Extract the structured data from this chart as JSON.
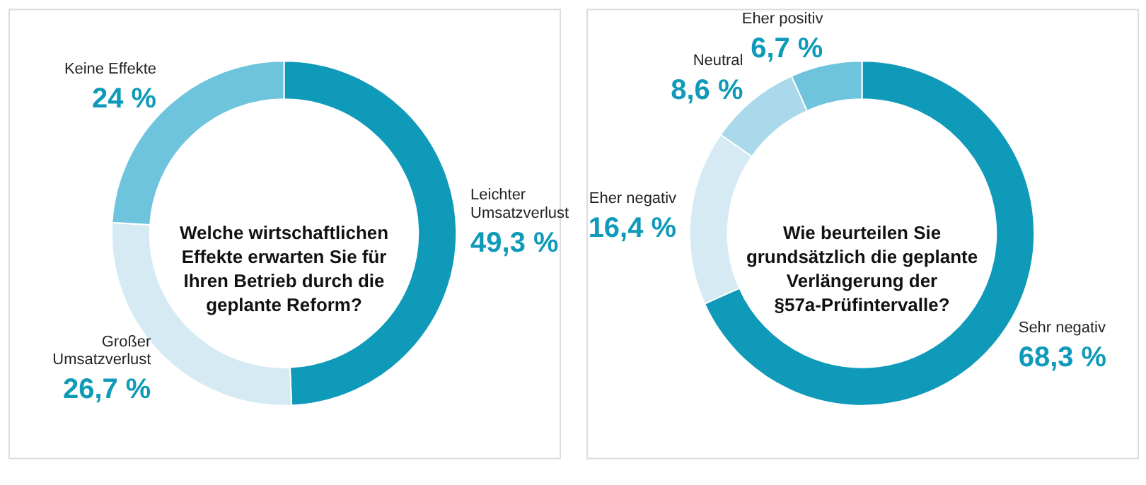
{
  "chart_data": [
    {
      "type": "donut",
      "title": "Welche wirtschaftlichen\nEffekte erwarten Sie für\nIhren Betrieb durch die\ngeplante Reform?",
      "categories": [
        "Leichter Umsatzverlust",
        "Großer Umsatzverlust",
        "Keine Effekte"
      ],
      "values": [
        49.3,
        26.7,
        24
      ],
      "colors": [
        "#0f9ab9",
        "#d5eaf3",
        "#6fc4dd"
      ],
      "value_labels": [
        "49,3 %",
        "26,7 %",
        "24 %"
      ]
    },
    {
      "type": "donut",
      "title": "Wie beurteilen Sie\ngrundsätzlich die geplante\nVerlängerung der\n§57a-Prüfintervalle?",
      "categories": [
        "Sehr negativ",
        "Eher negativ",
        "Neutral",
        "Eher positiv"
      ],
      "values": [
        68.3,
        16.4,
        8.6,
        6.7
      ],
      "colors": [
        "#0f9ab9",
        "#d5eaf3",
        "#a9d9ea",
        "#6fc4dd"
      ],
      "value_labels": [
        "68,3 %",
        "16,4 %",
        "8,6 %",
        "6,7 %"
      ]
    }
  ]
}
